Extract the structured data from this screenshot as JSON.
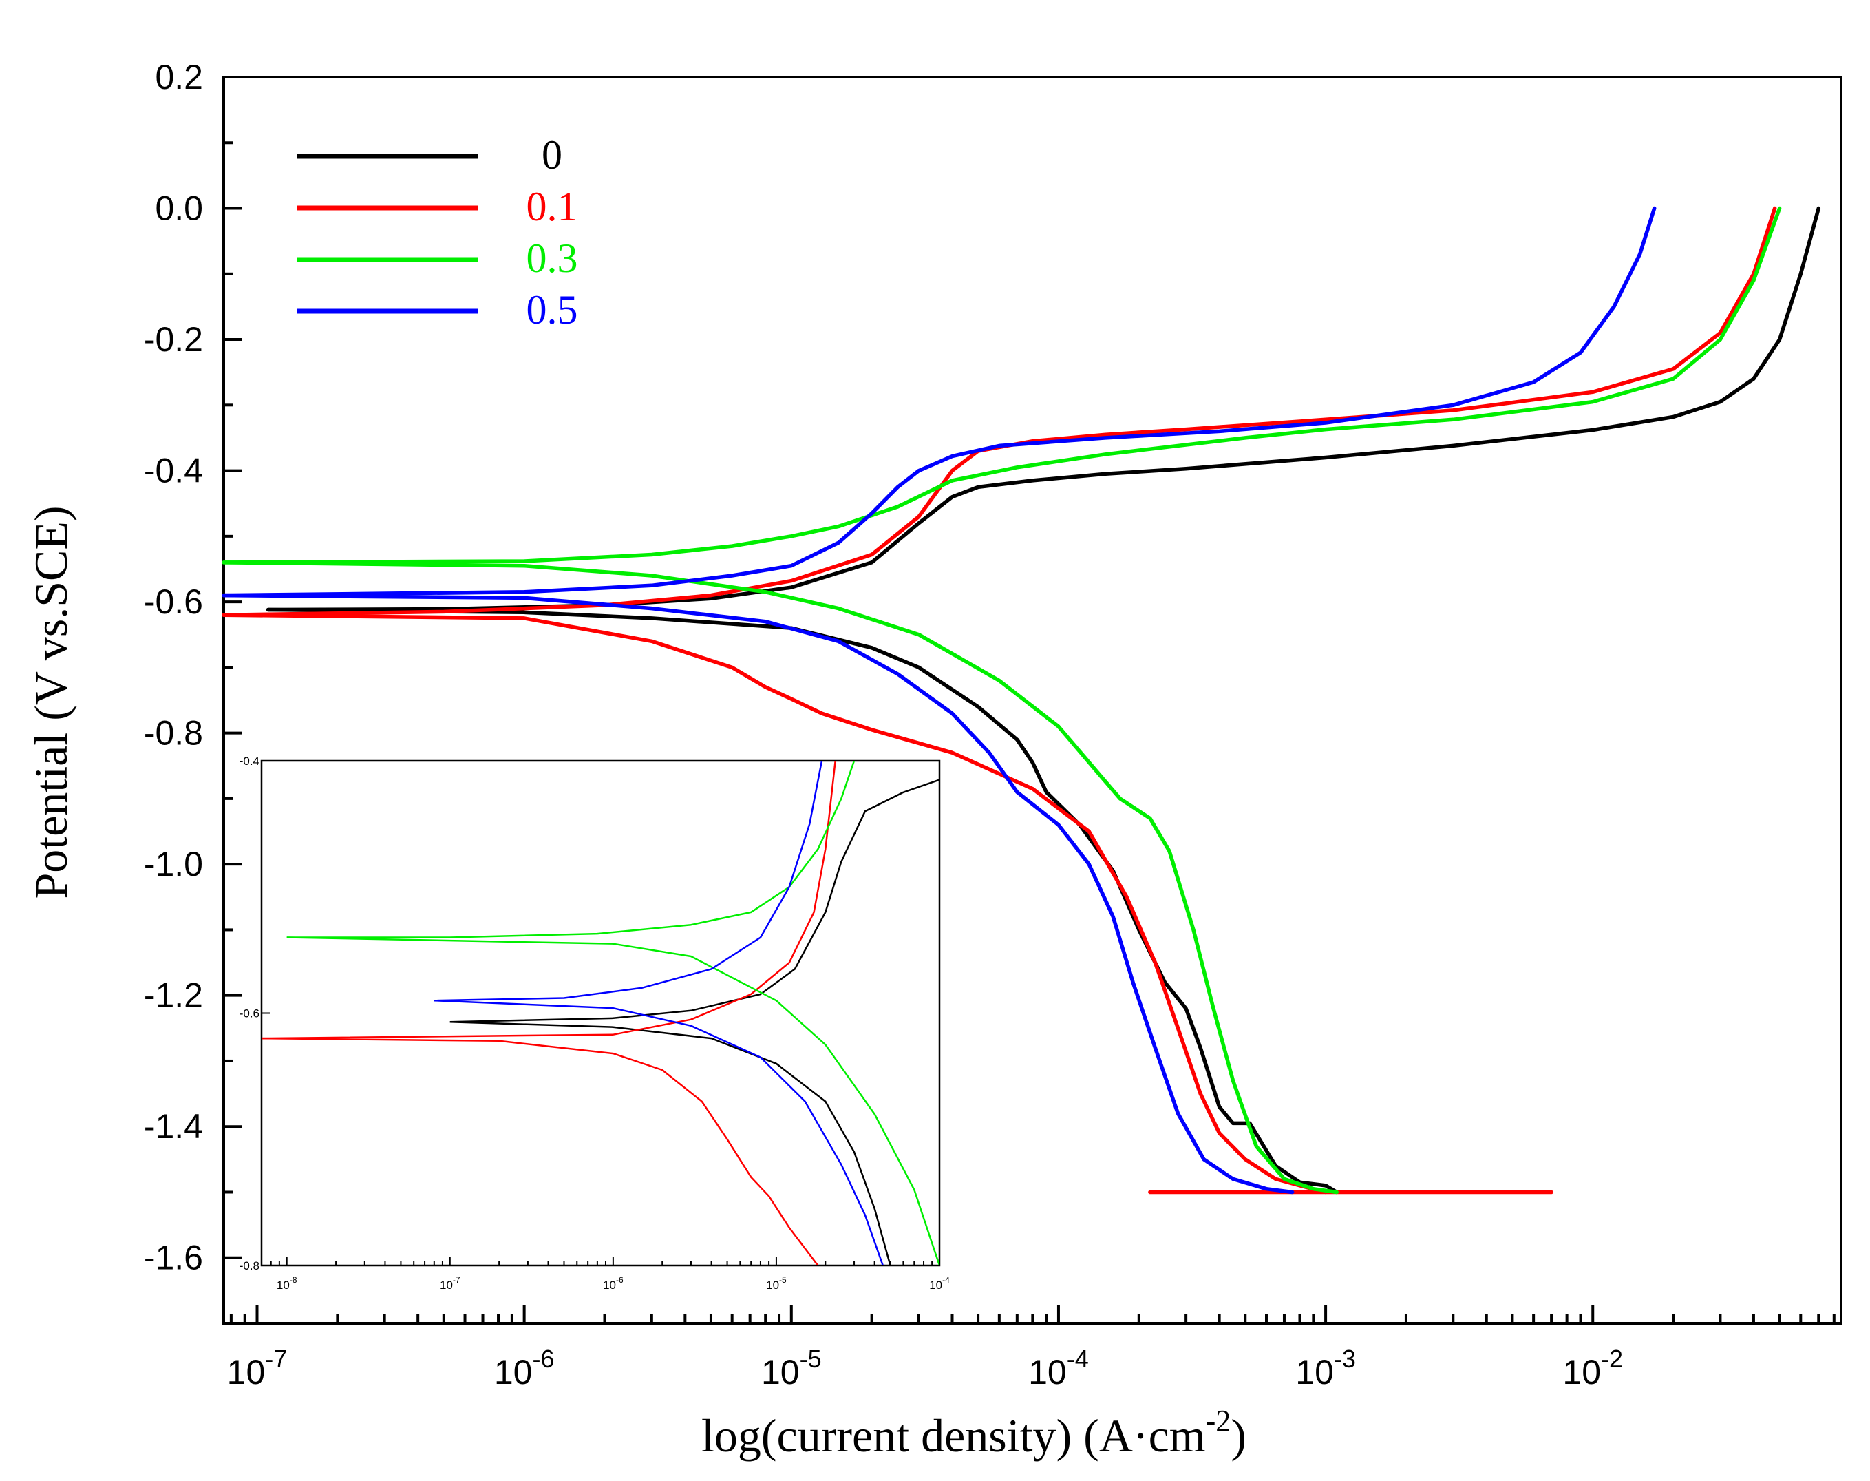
{
  "chart_data": {
    "type": "line",
    "xlabel": "log(current density) (A·cm",
    "xlabel_sup": "-2",
    "xlabel_close": ")",
    "ylabel": "Potential (V vs.SCE)",
    "xscale": "log",
    "xlim": [
      7.5e-08,
      0.085
    ],
    "ylim": [
      -1.7,
      0.2
    ],
    "x_ticks": [
      {
        "value": 1e-07,
        "base": "10",
        "exp": "-7"
      },
      {
        "value": 1e-06,
        "base": "10",
        "exp": "-6"
      },
      {
        "value": 1e-05,
        "base": "10",
        "exp": "-5"
      },
      {
        "value": 0.0001,
        "base": "10",
        "exp": "-4"
      },
      {
        "value": 0.001,
        "base": "10",
        "exp": "-3"
      },
      {
        "value": 0.01,
        "base": "10",
        "exp": "-2"
      }
    ],
    "y_ticks": [
      {
        "value": 0.2,
        "label": "0.2"
      },
      {
        "value": 0.0,
        "label": "0.0"
      },
      {
        "value": -0.2,
        "label": "-0.2"
      },
      {
        "value": -0.4,
        "label": "-0.4"
      },
      {
        "value": -0.6,
        "label": "-0.6"
      },
      {
        "value": -0.8,
        "label": "-0.8"
      },
      {
        "value": -1.0,
        "label": "-1.0"
      },
      {
        "value": -1.2,
        "label": "-1.2"
      },
      {
        "value": -1.4,
        "label": "-1.4"
      },
      {
        "value": -1.6,
        "label": "-1.6"
      }
    ],
    "legend_position": "top-left",
    "series": [
      {
        "name": "0",
        "color": "#000000",
        "anodic": [
          [
            1.1e-07,
            -0.612
          ],
          [
            5e-07,
            -0.611
          ],
          [
            2e-06,
            -0.605
          ],
          [
            5e-06,
            -0.595
          ],
          [
            1e-05,
            -0.578
          ],
          [
            2e-05,
            -0.54
          ],
          [
            3e-05,
            -0.48
          ],
          [
            4e-05,
            -0.44
          ],
          [
            5e-05,
            -0.425
          ],
          [
            8e-05,
            -0.415
          ],
          [
            0.00015,
            -0.405
          ],
          [
            0.0003,
            -0.397
          ],
          [
            0.001,
            -0.38
          ],
          [
            0.003,
            -0.362
          ],
          [
            0.01,
            -0.338
          ],
          [
            0.02,
            -0.318
          ],
          [
            0.03,
            -0.295
          ],
          [
            0.04,
            -0.26
          ],
          [
            0.05,
            -0.2
          ],
          [
            0.06,
            -0.1
          ],
          [
            0.07,
            0.0
          ]
        ],
        "cathodic": [
          [
            1.1e-07,
            -0.612
          ],
          [
            1e-06,
            -0.616
          ],
          [
            3e-06,
            -0.625
          ],
          [
            1e-05,
            -0.64
          ],
          [
            2e-05,
            -0.67
          ],
          [
            3e-05,
            -0.7
          ],
          [
            5e-05,
            -0.76
          ],
          [
            7e-05,
            -0.81
          ],
          [
            8e-05,
            -0.845
          ],
          [
            9e-05,
            -0.89
          ],
          [
            0.00012,
            -0.94
          ],
          [
            0.00016,
            -1.01
          ],
          [
            0.0002,
            -1.1
          ],
          [
            0.00025,
            -1.18
          ],
          [
            0.0003,
            -1.22
          ],
          [
            0.00034,
            -1.28
          ],
          [
            0.0004,
            -1.37
          ],
          [
            0.00045,
            -1.395
          ],
          [
            0.00052,
            -1.395
          ],
          [
            0.00065,
            -1.46
          ],
          [
            0.0008,
            -1.485
          ],
          [
            0.001,
            -1.49
          ],
          [
            0.0011,
            -1.5
          ]
        ]
      },
      {
        "name": "0.1",
        "color": "#ff0000",
        "anodic": [
          [
            7.5e-08,
            -0.62
          ],
          [
            5e-07,
            -0.615
          ],
          [
            2e-06,
            -0.605
          ],
          [
            5e-06,
            -0.59
          ],
          [
            1e-05,
            -0.568
          ],
          [
            2e-05,
            -0.528
          ],
          [
            3e-05,
            -0.47
          ],
          [
            4e-05,
            -0.4
          ],
          [
            5e-05,
            -0.37
          ],
          [
            8e-05,
            -0.355
          ],
          [
            0.00015,
            -0.345
          ],
          [
            0.0003,
            -0.337
          ],
          [
            0.001,
            -0.322
          ],
          [
            0.003,
            -0.308
          ],
          [
            0.01,
            -0.28
          ],
          [
            0.02,
            -0.245
          ],
          [
            0.03,
            -0.19
          ],
          [
            0.04,
            -0.1
          ],
          [
            0.048,
            0.0
          ]
        ],
        "cathodic": [
          [
            7.5e-08,
            -0.62
          ],
          [
            1e-06,
            -0.625
          ],
          [
            3e-06,
            -0.66
          ],
          [
            6e-06,
            -0.7
          ],
          [
            8e-06,
            -0.73
          ],
          [
            1e-05,
            -0.748
          ],
          [
            1.3e-05,
            -0.77
          ],
          [
            2e-05,
            -0.795
          ],
          [
            4e-05,
            -0.83
          ],
          [
            8e-05,
            -0.885
          ],
          [
            0.00013,
            -0.95
          ],
          [
            0.00018,
            -1.05
          ],
          [
            0.00023,
            -1.15
          ],
          [
            0.00028,
            -1.25
          ],
          [
            0.00034,
            -1.35
          ],
          [
            0.0004,
            -1.41
          ],
          [
            0.0005,
            -1.45
          ],
          [
            0.00065,
            -1.48
          ],
          [
            0.0008,
            -1.49
          ],
          [
            0.001,
            -1.5
          ]
        ],
        "flat": [
          [
            0.00022,
            -1.5
          ],
          [
            0.007,
            -1.5
          ]
        ]
      },
      {
        "name": "0.3",
        "color": "#00ee00",
        "anodic": [
          [
            7.5e-08,
            -0.54
          ],
          [
            1e-06,
            -0.538
          ],
          [
            3e-06,
            -0.528
          ],
          [
            6e-06,
            -0.515
          ],
          [
            1e-05,
            -0.5
          ],
          [
            1.5e-05,
            -0.485
          ],
          [
            2.5e-05,
            -0.455
          ],
          [
            4e-05,
            -0.415
          ],
          [
            7e-05,
            -0.395
          ],
          [
            0.00015,
            -0.375
          ],
          [
            0.0005,
            -0.35
          ],
          [
            0.001,
            -0.337
          ],
          [
            0.003,
            -0.322
          ],
          [
            0.01,
            -0.295
          ],
          [
            0.02,
            -0.26
          ],
          [
            0.03,
            -0.2
          ],
          [
            0.04,
            -0.11
          ],
          [
            0.05,
            0.0
          ]
        ],
        "cathodic": [
          [
            7.5e-08,
            -0.54
          ],
          [
            1e-06,
            -0.545
          ],
          [
            3e-06,
            -0.56
          ],
          [
            8e-06,
            -0.585
          ],
          [
            1.5e-05,
            -0.61
          ],
          [
            3e-05,
            -0.65
          ],
          [
            6e-05,
            -0.72
          ],
          [
            0.0001,
            -0.79
          ],
          [
            0.00014,
            -0.86
          ],
          [
            0.00017,
            -0.9
          ],
          [
            0.00022,
            -0.93
          ],
          [
            0.00026,
            -0.98
          ],
          [
            0.00032,
            -1.1
          ],
          [
            0.00038,
            -1.22
          ],
          [
            0.00045,
            -1.33
          ],
          [
            0.00055,
            -1.43
          ],
          [
            0.0007,
            -1.48
          ],
          [
            0.0009,
            -1.495
          ],
          [
            0.0011,
            -1.5
          ]
        ]
      },
      {
        "name": "0.5",
        "color": "#0000ff",
        "anodic": [
          [
            7.5e-08,
            -0.59
          ],
          [
            1e-06,
            -0.585
          ],
          [
            3e-06,
            -0.575
          ],
          [
            6e-06,
            -0.56
          ],
          [
            1e-05,
            -0.545
          ],
          [
            1.5e-05,
            -0.51
          ],
          [
            2e-05,
            -0.465
          ],
          [
            2.5e-05,
            -0.425
          ],
          [
            3e-05,
            -0.4
          ],
          [
            4e-05,
            -0.378
          ],
          [
            6e-05,
            -0.362
          ],
          [
            0.00015,
            -0.35
          ],
          [
            0.0004,
            -0.34
          ],
          [
            0.001,
            -0.327
          ],
          [
            0.003,
            -0.3
          ],
          [
            0.006,
            -0.265
          ],
          [
            0.009,
            -0.22
          ],
          [
            0.012,
            -0.15
          ],
          [
            0.015,
            -0.07
          ],
          [
            0.017,
            0.0
          ]
        ],
        "cathodic": [
          [
            7.5e-08,
            -0.59
          ],
          [
            1e-06,
            -0.594
          ],
          [
            3e-06,
            -0.61
          ],
          [
            8e-06,
            -0.63
          ],
          [
            1.5e-05,
            -0.66
          ],
          [
            2.5e-05,
            -0.71
          ],
          [
            4e-05,
            -0.77
          ],
          [
            5.5e-05,
            -0.83
          ],
          [
            7e-05,
            -0.89
          ],
          [
            0.0001,
            -0.94
          ],
          [
            0.00013,
            -1.0
          ],
          [
            0.00016,
            -1.08
          ],
          [
            0.00019,
            -1.18
          ],
          [
            0.00023,
            -1.28
          ],
          [
            0.00028,
            -1.38
          ],
          [
            0.00035,
            -1.45
          ],
          [
            0.00045,
            -1.48
          ],
          [
            0.0006,
            -1.495
          ],
          [
            0.00075,
            -1.5
          ]
        ]
      }
    ],
    "inset": {
      "xscale": "log",
      "xlim": [
        7e-09,
        0.0001
      ],
      "ylim": [
        -0.8,
        -0.4
      ],
      "x_ticks": [
        {
          "value": 1e-08,
          "base": "10",
          "exp": "-8"
        },
        {
          "value": 1e-07,
          "base": "10",
          "exp": "-7"
        },
        {
          "value": 1e-06,
          "base": "10",
          "exp": "-6"
        },
        {
          "value": 1e-05,
          "base": "10",
          "exp": "-5"
        },
        {
          "value": 0.0001,
          "base": "10",
          "exp": "-4"
        }
      ],
      "y_ticks": [
        {
          "value": -0.4,
          "label": "-0.4"
        },
        {
          "value": -0.6,
          "label": "-0.6"
        },
        {
          "value": -0.8,
          "label": "-0.8"
        }
      ],
      "series": [
        {
          "name": "0",
          "color": "#000000",
          "anodic": [
            [
              1e-07,
              -0.607
            ],
            [
              1e-06,
              -0.604
            ],
            [
              3e-06,
              -0.598
            ],
            [
              8e-06,
              -0.585
            ],
            [
              1.3e-05,
              -0.565
            ],
            [
              2e-05,
              -0.52
            ],
            [
              2.5e-05,
              -0.48
            ],
            [
              3.5e-05,
              -0.44
            ],
            [
              6e-05,
              -0.425
            ],
            [
              0.0001,
              -0.415
            ]
          ],
          "cathodic": [
            [
              1e-07,
              -0.607
            ],
            [
              1e-06,
              -0.611
            ],
            [
              4e-06,
              -0.62
            ],
            [
              1e-05,
              -0.64
            ],
            [
              2e-05,
              -0.67
            ],
            [
              3e-05,
              -0.71
            ],
            [
              4e-05,
              -0.755
            ],
            [
              5e-05,
              -0.8
            ]
          ]
        },
        {
          "name": "0.1",
          "color": "#ff0000",
          "anodic": [
            [
              7e-09,
              -0.62
            ],
            [
              1e-06,
              -0.617
            ],
            [
              3e-06,
              -0.605
            ],
            [
              7e-06,
              -0.585
            ],
            [
              1.2e-05,
              -0.56
            ],
            [
              1.7e-05,
              -0.52
            ],
            [
              2e-05,
              -0.47
            ],
            [
              2.3e-05,
              -0.4
            ]
          ],
          "cathodic": [
            [
              7e-09,
              -0.62
            ],
            [
              2e-07,
              -0.622
            ],
            [
              1e-06,
              -0.632
            ],
            [
              2e-06,
              -0.645
            ],
            [
              3.5e-06,
              -0.67
            ],
            [
              5e-06,
              -0.7
            ],
            [
              7e-06,
              -0.73
            ],
            [
              9e-06,
              -0.745
            ],
            [
              1.2e-05,
              -0.77
            ],
            [
              1.8e-05,
              -0.8
            ]
          ]
        },
        {
          "name": "0.3",
          "color": "#00ee00",
          "anodic": [
            [
              1e-08,
              -0.54
            ],
            [
              1e-07,
              -0.54
            ],
            [
              8e-07,
              -0.537
            ],
            [
              3e-06,
              -0.53
            ],
            [
              7e-06,
              -0.52
            ],
            [
              1.2e-05,
              -0.5
            ],
            [
              1.8e-05,
              -0.47
            ],
            [
              2.5e-05,
              -0.43
            ],
            [
              3e-05,
              -0.4
            ]
          ],
          "cathodic": [
            [
              1e-08,
              -0.54
            ],
            [
              1e-06,
              -0.545
            ],
            [
              3e-06,
              -0.555
            ],
            [
              1e-05,
              -0.59
            ],
            [
              2e-05,
              -0.625
            ],
            [
              4e-05,
              -0.68
            ],
            [
              7e-05,
              -0.74
            ],
            [
              0.0001,
              -0.8
            ]
          ]
        },
        {
          "name": "0.5",
          "color": "#0000ff",
          "anodic": [
            [
              8e-08,
              -0.59
            ],
            [
              5e-07,
              -0.588
            ],
            [
              1.5e-06,
              -0.58
            ],
            [
              4e-06,
              -0.565
            ],
            [
              8e-06,
              -0.54
            ],
            [
              1.2e-05,
              -0.5
            ],
            [
              1.6e-05,
              -0.45
            ],
            [
              1.9e-05,
              -0.4
            ]
          ],
          "cathodic": [
            [
              8e-08,
              -0.59
            ],
            [
              1e-06,
              -0.596
            ],
            [
              3e-06,
              -0.61
            ],
            [
              8e-06,
              -0.635
            ],
            [
              1.5e-05,
              -0.67
            ],
            [
              2.5e-05,
              -0.72
            ],
            [
              3.5e-05,
              -0.76
            ],
            [
              4.5e-05,
              -0.8
            ]
          ]
        }
      ]
    }
  }
}
